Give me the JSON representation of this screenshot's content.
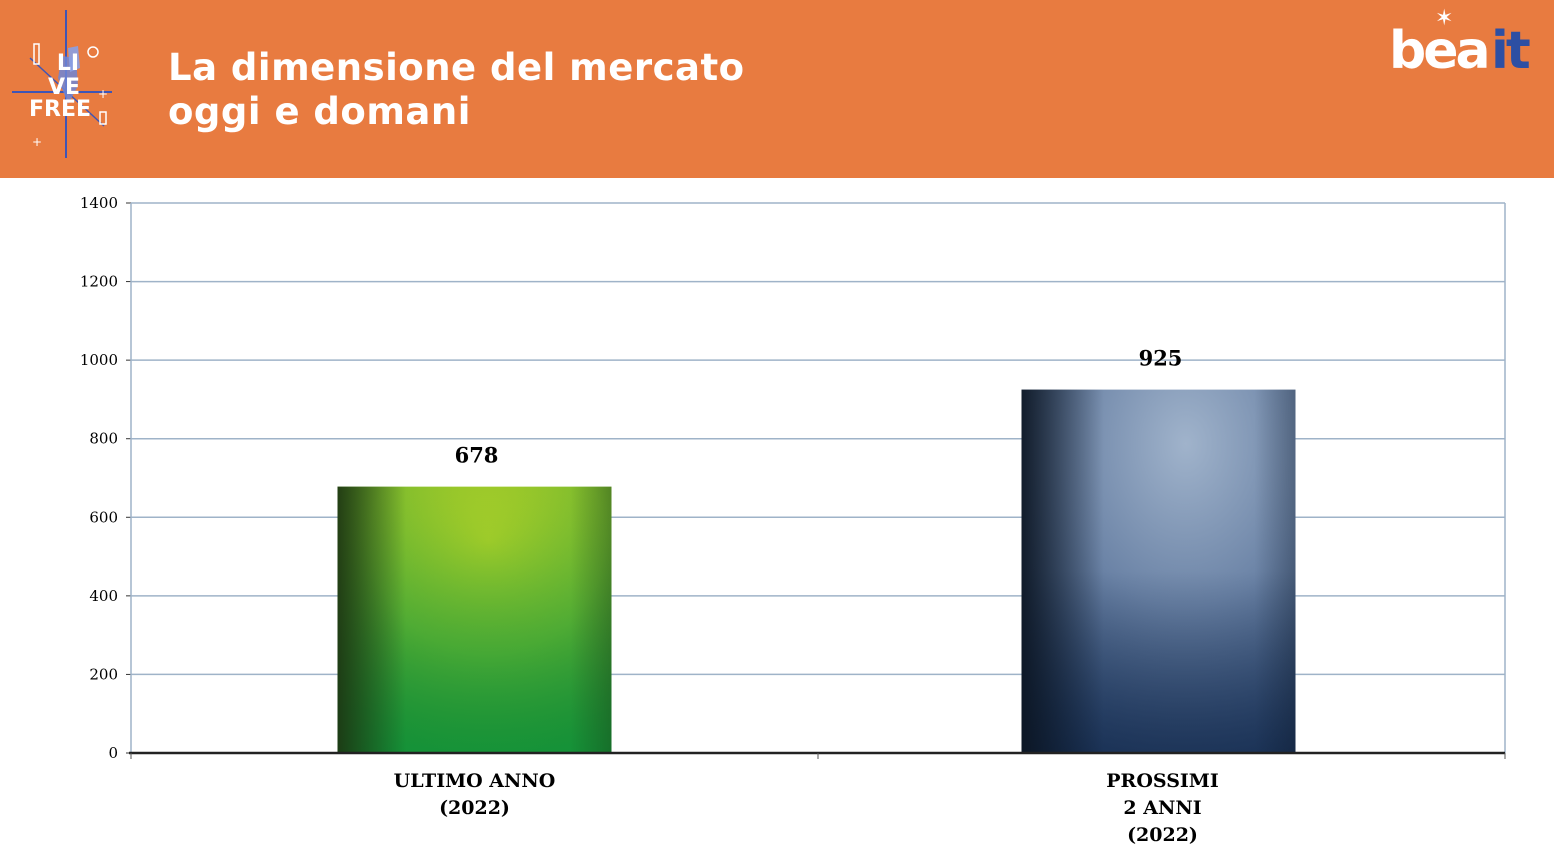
{
  "header": {
    "title_line1": "La dimensione del mercato",
    "title_line2": "oggi e domani",
    "left_logo_text": "LIVE FREE",
    "right_logo_text": "beait"
  },
  "colors": {
    "header_bg": "#e87b40",
    "gridline": "#9fb3c8",
    "bar1_light": "#b5d327",
    "bar1_dark": "#0f6a2a",
    "bar2_light": "#9aaec8",
    "bar2_dark": "#12223a",
    "logo_accent": "#2d4fa3"
  },
  "chart_data": {
    "type": "bar",
    "categories": [
      [
        "ULTIMO ANNO",
        "(2022)"
      ],
      [
        "PROSSIMI",
        "2 ANNI",
        "(2022)"
      ]
    ],
    "values": [
      678,
      925
    ],
    "data_labels": [
      "678",
      "925"
    ],
    "ylim": [
      0,
      1400
    ],
    "yticks": [
      0,
      200,
      400,
      600,
      800,
      1000,
      1200,
      1400
    ],
    "grid": true,
    "legend": "none",
    "xlabel": "",
    "ylabel": ""
  }
}
